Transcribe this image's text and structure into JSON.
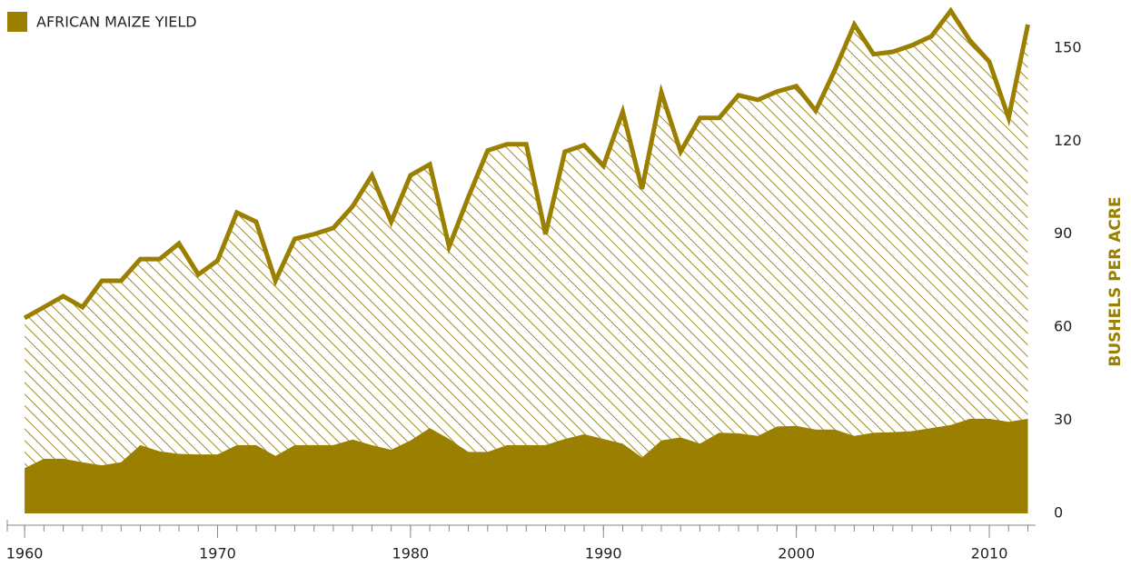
{
  "chart_data": {
    "type": "area",
    "x": [
      1960,
      1961,
      1962,
      1963,
      1964,
      1965,
      1966,
      1967,
      1968,
      1969,
      1970,
      1971,
      1972,
      1973,
      1974,
      1975,
      1976,
      1977,
      1978,
      1979,
      1980,
      1981,
      1982,
      1983,
      1984,
      1985,
      1986,
      1987,
      1988,
      1989,
      1990,
      1991,
      1992,
      1993,
      1994,
      1995,
      1996,
      1997,
      1998,
      1999,
      2000,
      2001,
      2002,
      2003,
      2004,
      2005,
      2006,
      2007,
      2008,
      2009,
      2010,
      2011,
      2012
    ],
    "series": [
      {
        "name": "AFRICAN MAIZE YIELD",
        "color": "#9a7f00",
        "values": [
          14.6,
          17.6,
          17.6,
          16.5,
          15.5,
          16.5,
          22,
          20,
          19.2,
          19,
          19,
          22,
          22,
          18.5,
          22,
          22,
          22,
          23.8,
          22,
          20.5,
          23.5,
          27.5,
          24,
          19.8,
          19.8,
          22,
          22,
          22,
          24,
          25.5,
          24,
          22.5,
          18,
          23.5,
          24.5,
          22.5,
          26,
          25.8,
          25,
          28,
          28.2,
          27,
          27,
          25,
          26,
          26.2,
          26.5,
          27.5,
          28.5,
          30.5,
          30.5,
          29.5,
          30.5
        ]
      },
      {
        "color": "#9a7f00",
        "values": [
          63,
          66.5,
          70,
          66.5,
          75,
          75,
          82,
          82,
          87,
          77,
          81.5,
          97,
          94,
          75,
          88.5,
          90,
          92,
          99,
          109,
          94,
          109,
          112.5,
          86,
          102,
          117,
          119,
          119,
          90,
          116.6,
          118.7,
          112,
          129.5,
          104.6,
          135.7,
          116.6,
          127.5,
          127.5,
          134.8,
          133.3,
          136,
          137.7,
          129.8,
          143,
          157.6,
          148,
          148.8,
          150.9,
          153.8,
          162,
          152.4,
          145.6,
          127.5,
          157.6
        ]
      }
    ],
    "xlim": [
      1959.1,
      2012.4
    ],
    "xticks": [
      1960,
      1970,
      1980,
      1990,
      2000,
      2010
    ],
    "ylim": [
      0,
      165.5
    ],
    "yticks": [
      0,
      30,
      60,
      90,
      120,
      150
    ],
    "y_label": "BUSHELS PER ACRE",
    "grid": false
  }
}
